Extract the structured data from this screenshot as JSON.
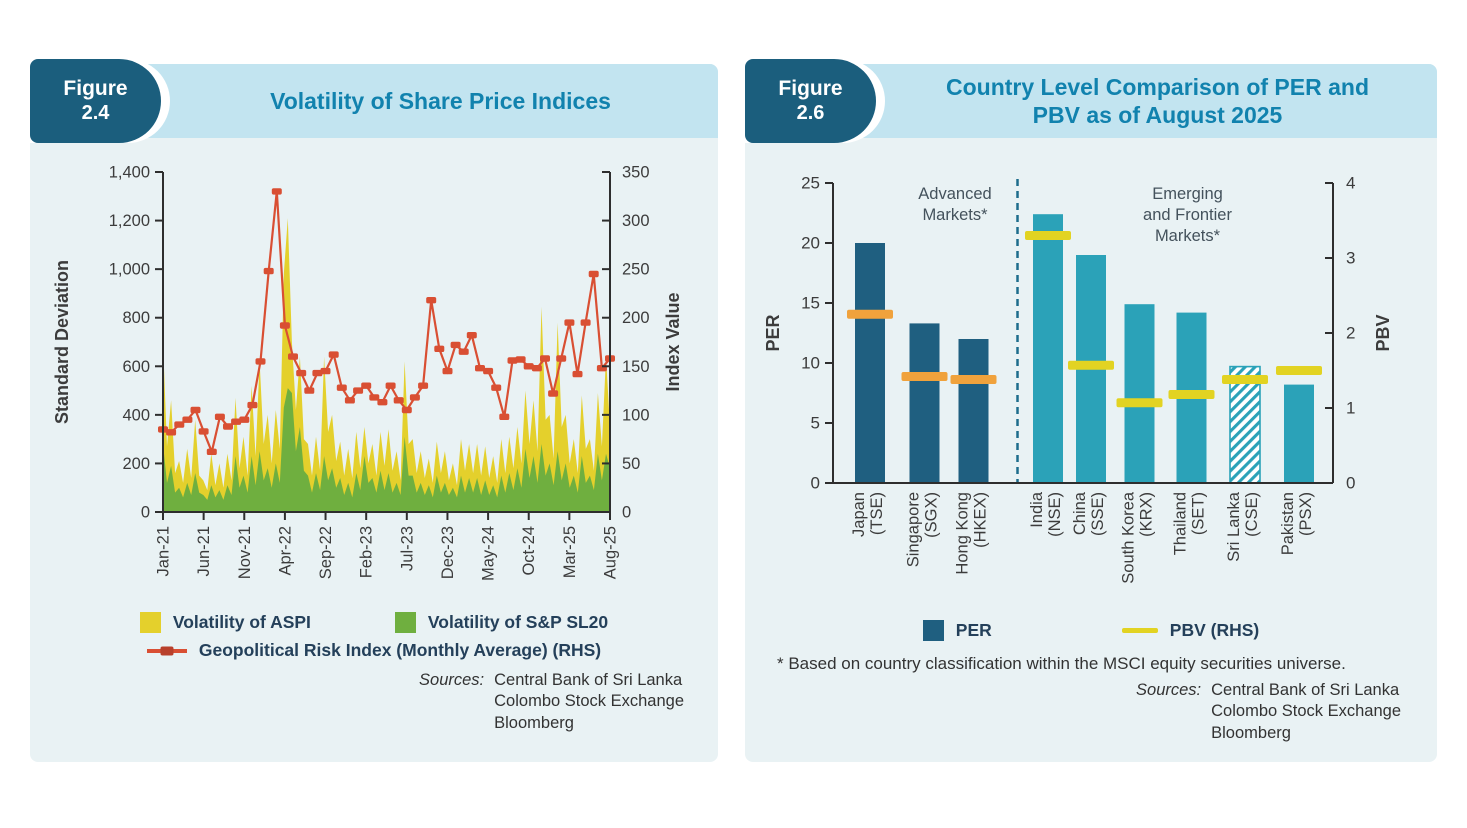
{
  "colors": {
    "panel_bg": "#E9F2F4",
    "strip_bg": "#C2E4F0",
    "badge_bg": "#1B5E7D",
    "title": "#1182AE",
    "axis": "#2E2E2E",
    "tick_text": "#3C3C3C",
    "legend_text": "#24405A",
    "annotation_text": "#44525C",
    "aspi_yellow": "#E4D02C",
    "sl20_green": "#6FAF3F",
    "gpr_red": "#D94F33",
    "gpr_marker_dark": "#B8402B",
    "per_bar": "#1F5F80",
    "emerging_bar": "#2BA2B8",
    "pbv_orange": "#F0A23C",
    "pbv_yellow": "#E2D322",
    "separator": "#1E6C8C"
  },
  "fig1": {
    "badge_line1": "Figure",
    "badge_line2": "2.4",
    "title": "Volatility of Share Price Indices",
    "legend": {
      "aspi": "Volatility of ASPI",
      "sl20": "Volatility of S&P SL20",
      "gpr": "Geopolitical Risk Index (Monthly Average) (RHS)"
    },
    "sources_label": "Sources:",
    "sources_line1": "Central Bank of Sri Lanka",
    "sources_line2": "Colombo Stock Exchange",
    "sources_line3": "Bloomberg"
  },
  "fig2": {
    "badge_line1": "Figure",
    "badge_line2": "2.6",
    "title_line1": "Country Level Comparison of PER and",
    "title_line2": "PBV as of August 2025",
    "legend": {
      "per": "PER",
      "pbv": "PBV (RHS)"
    },
    "footnote": "* Based on country classification within the MSCI equity securities universe.",
    "sources_label": "Sources:",
    "sources_line1": "Central Bank of Sri Lanka",
    "sources_line2": "Colombo Stock Exchange",
    "sources_line3": "Bloomberg"
  },
  "chart_data": [
    {
      "id": "volatility_of_share_price_indices",
      "type": "area",
      "title": "Volatility of Share Price Indices",
      "left_axis": {
        "label": "Standard Deviation",
        "min": 0,
        "max": 1400,
        "step": 200
      },
      "right_axis": {
        "label": "Index Value",
        "min": 0,
        "max": 350,
        "step": 50
      },
      "left_ticks": [
        "0",
        "200",
        "400",
        "600",
        "800",
        "1,000",
        "1,200",
        "1,400"
      ],
      "right_ticks": [
        "0",
        "50",
        "100",
        "150",
        "200",
        "250",
        "300",
        "350"
      ],
      "x_tick_labels": [
        "Jan-21",
        "Jun-21",
        "Nov-21",
        "Apr-22",
        "Sep-22",
        "Feb-23",
        "Jul-23",
        "Dec-23",
        "May-24",
        "Oct-24",
        "Mar-25",
        "Aug-25"
      ],
      "x_tick_positions": [
        0,
        5,
        10,
        15,
        20,
        25,
        30,
        35,
        40,
        45,
        50,
        55
      ],
      "months_span": 56,
      "series": [
        {
          "name": "Volatility of ASPI",
          "type": "area",
          "axis": "left",
          "values": [
            700,
            270,
            460,
            160,
            210,
            120,
            260,
            140,
            380,
            150,
            130,
            90,
            240,
            110,
            200,
            100,
            240,
            130,
            470,
            180,
            310,
            150,
            520,
            230,
            620,
            280,
            400,
            200,
            420,
            260,
            980,
            1210,
            700,
            420,
            640,
            300,
            280,
            150,
            310,
            170,
            640,
            330,
            400,
            210,
            290,
            150,
            260,
            140,
            330,
            180,
            350,
            200,
            280,
            150,
            330,
            190,
            340,
            170,
            250,
            130,
            620,
            280,
            300,
            160,
            250,
            140,
            220,
            120,
            290,
            160,
            250,
            130,
            200,
            110,
            300,
            170,
            280,
            160,
            280,
            150,
            270,
            140,
            230,
            120,
            300,
            160,
            310,
            180,
            350,
            200,
            500,
            280,
            460,
            250,
            845,
            380,
            400,
            220,
            780,
            350,
            400,
            200,
            300,
            160,
            480,
            260,
            300,
            170,
            490,
            270,
            640,
            350
          ]
        },
        {
          "name": "Volatility of S&P SL20",
          "type": "area",
          "axis": "left",
          "values": [
            280,
            120,
            190,
            80,
            100,
            60,
            120,
            70,
            160,
            80,
            70,
            50,
            110,
            60,
            90,
            50,
            110,
            70,
            230,
            100,
            150,
            80,
            230,
            110,
            250,
            130,
            180,
            100,
            200,
            120,
            430,
            510,
            490,
            250,
            350,
            170,
            150,
            80,
            160,
            90,
            230,
            130,
            180,
            100,
            140,
            70,
            120,
            60,
            160,
            90,
            230,
            120,
            140,
            80,
            170,
            90,
            160,
            80,
            120,
            70,
            310,
            150,
            150,
            80,
            120,
            70,
            110,
            60,
            150,
            80,
            120,
            70,
            100,
            60,
            150,
            80,
            140,
            80,
            140,
            70,
            130,
            70,
            110,
            60,
            150,
            80,
            160,
            90,
            180,
            100,
            260,
            140,
            230,
            120,
            280,
            150,
            200,
            110,
            250,
            130,
            200,
            100,
            150,
            80,
            230,
            120,
            150,
            90,
            240,
            130,
            240,
            180
          ]
        },
        {
          "name": "Geopolitical Risk Index (Monthly Average) (RHS)",
          "type": "line",
          "axis": "right",
          "values": [
            85,
            82,
            90,
            95,
            105,
            83,
            62,
            98,
            88,
            93,
            95,
            110,
            155,
            248,
            330,
            192,
            160,
            143,
            125,
            143,
            145,
            162,
            128,
            115,
            125,
            130,
            118,
            113,
            130,
            115,
            105,
            118,
            130,
            218,
            168,
            145,
            172,
            165,
            182,
            148,
            145,
            128,
            98,
            156,
            157,
            150,
            148,
            158,
            122,
            158,
            195,
            142,
            195,
            245,
            148,
            158
          ]
        }
      ]
    },
    {
      "id": "country_per_pbv",
      "type": "bar",
      "title": "Country Level Comparison of PER and PBV as of August 2025",
      "left_axis": {
        "label": "PER",
        "min": 0,
        "max": 25,
        "step": 5
      },
      "right_axis": {
        "label": "PBV",
        "min": 0,
        "max": 4,
        "step": 1
      },
      "left_ticks": [
        "0",
        "5",
        "10",
        "15",
        "20",
        "25"
      ],
      "right_ticks": [
        "0",
        "1",
        "2",
        "3",
        "4"
      ],
      "categories": [
        {
          "country": "Japan",
          "exchange": "(TSE)",
          "group": "advanced",
          "hatched": false,
          "per": 20.0,
          "pbv": 2.25,
          "x_frac": 0.074
        },
        {
          "country": "Singapore",
          "exchange": "(SGX)",
          "group": "advanced",
          "hatched": false,
          "per": 13.3,
          "pbv": 1.42,
          "x_frac": 0.183
        },
        {
          "country": "Hong Kong",
          "exchange": "(HKEX)",
          "group": "advanced",
          "hatched": false,
          "per": 12.0,
          "pbv": 1.38,
          "x_frac": 0.281
        },
        {
          "country": "India",
          "exchange": "(NSE)",
          "group": "emerging",
          "hatched": false,
          "per": 22.4,
          "pbv": 3.3,
          "x_frac": 0.43
        },
        {
          "country": "China",
          "exchange": "(SSE)",
          "group": "emerging",
          "hatched": false,
          "per": 19.0,
          "pbv": 1.57,
          "x_frac": 0.516
        },
        {
          "country": "South Korea",
          "exchange": "(KRX)",
          "group": "emerging",
          "hatched": false,
          "per": 14.9,
          "pbv": 1.07,
          "x_frac": 0.613
        },
        {
          "country": "Thailand",
          "exchange": "(SET)",
          "group": "emerging",
          "hatched": false,
          "per": 14.2,
          "pbv": 1.18,
          "x_frac": 0.717
        },
        {
          "country": "Sri Lanka",
          "exchange": "(CSE)",
          "group": "emerging",
          "hatched": true,
          "per": 9.7,
          "pbv": 1.38,
          "x_frac": 0.824
        },
        {
          "country": "Pakistan",
          "exchange": "(PSX)",
          "group": "emerging",
          "hatched": false,
          "per": 8.2,
          "pbv": 1.5,
          "x_frac": 0.932
        }
      ],
      "separator_x_frac": 0.369,
      "annotations": [
        {
          "lines": [
            "Advanced",
            "Markets*"
          ],
          "x_frac": 0.244
        },
        {
          "lines": [
            "Emerging",
            "and Frontier",
            "Markets*"
          ],
          "x_frac": 0.709
        }
      ]
    }
  ]
}
